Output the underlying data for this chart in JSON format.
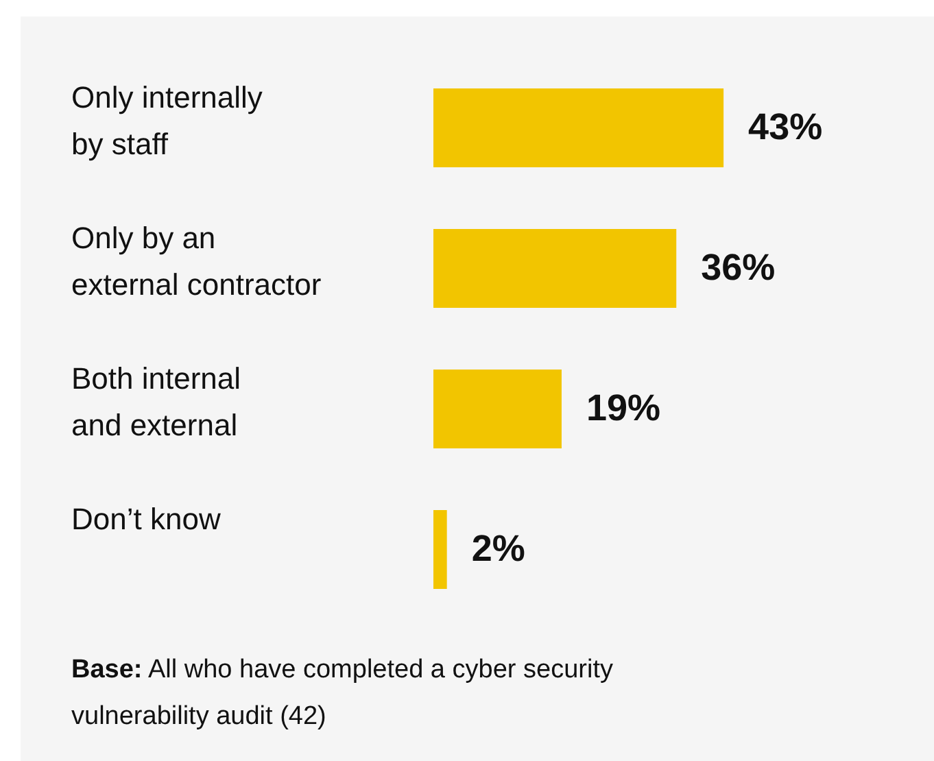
{
  "chart_data": {
    "type": "bar",
    "orientation": "horizontal",
    "categories": [
      "Only internally\nby staff",
      "Only by an\nexternal contractor",
      "Both internal\nand external",
      "Don’t know"
    ],
    "values": [
      43,
      36,
      19,
      2
    ],
    "value_labels": [
      "43%",
      "36%",
      "19%",
      "2%"
    ],
    "color": "#f2c500",
    "legend": false,
    "annotations": [
      "Base: All who have completed a cyber security vulnerability audit (42)"
    ]
  }
}
